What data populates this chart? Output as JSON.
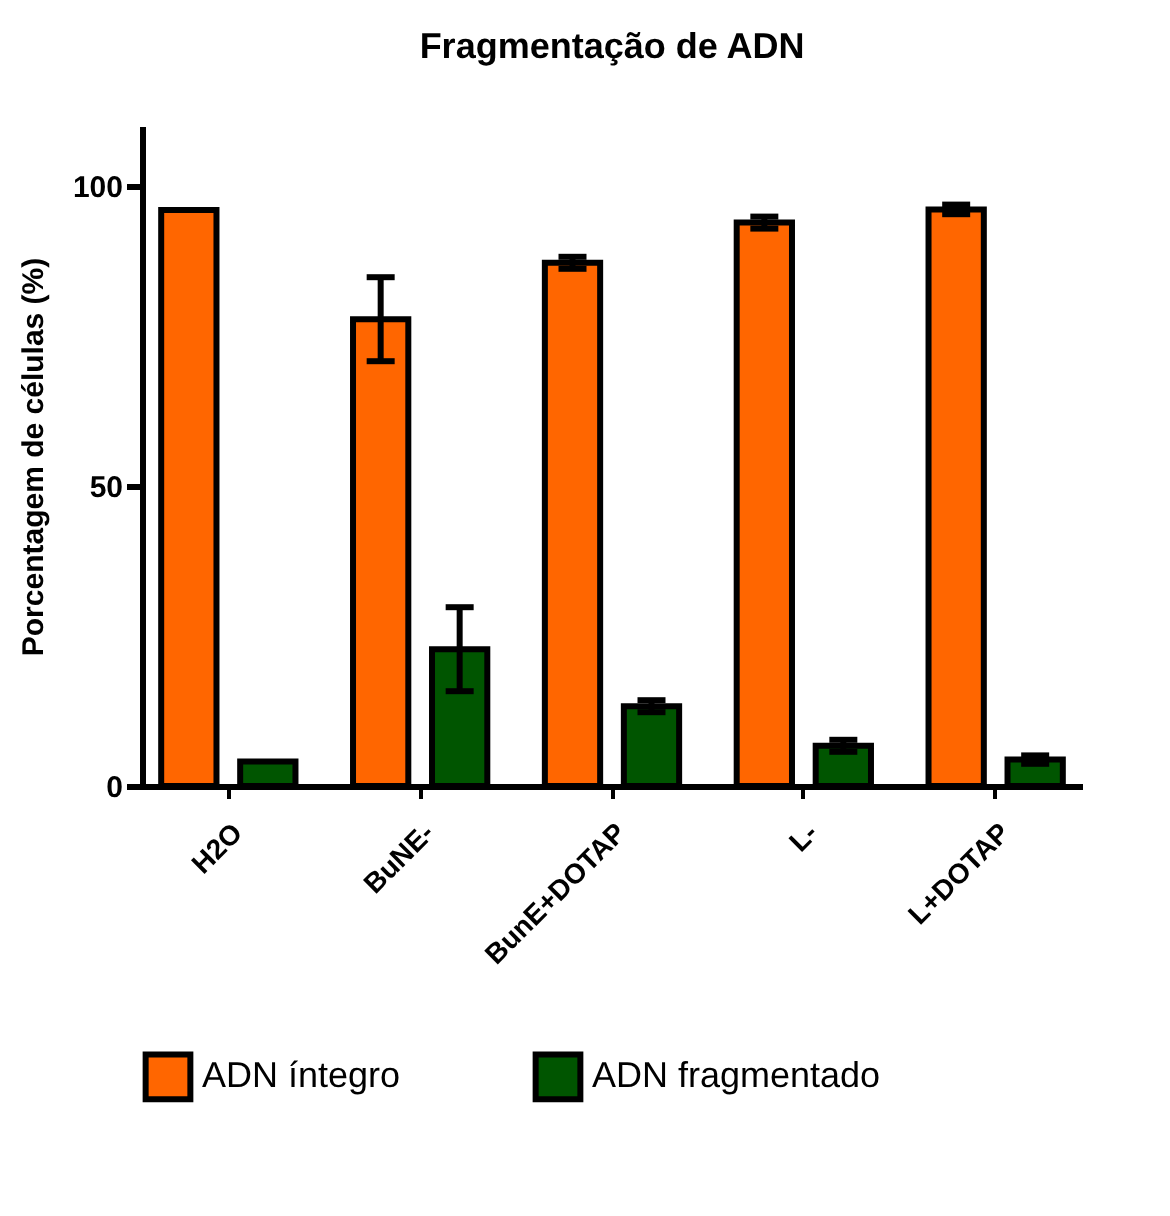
{
  "chart_data": {
    "type": "bar",
    "title": "Fragmentação de ADN",
    "ylabel": "Porcentagem de células (%)",
    "categories": [
      "H2O",
      "BuNE-",
      "BunE+DOTAP",
      "L-",
      "L+DOTAP"
    ],
    "series": [
      {
        "name": "ADN íntegro",
        "color": "#ff6600",
        "values": [
          96,
          77.8,
          87.2,
          93.9,
          96.1
        ],
        "errors": [
          null,
          7,
          1,
          1,
          0.8
        ]
      },
      {
        "name": "ADN fragmentado",
        "color": "#005500",
        "values": [
          4.1,
          22.8,
          13.3,
          6.7,
          4.4
        ],
        "errors": [
          null,
          7,
          1,
          1,
          0.7
        ]
      }
    ],
    "ylim": [
      0,
      110
    ],
    "yticks": [
      0,
      50,
      100
    ],
    "grid": false,
    "legend": "bottom"
  }
}
